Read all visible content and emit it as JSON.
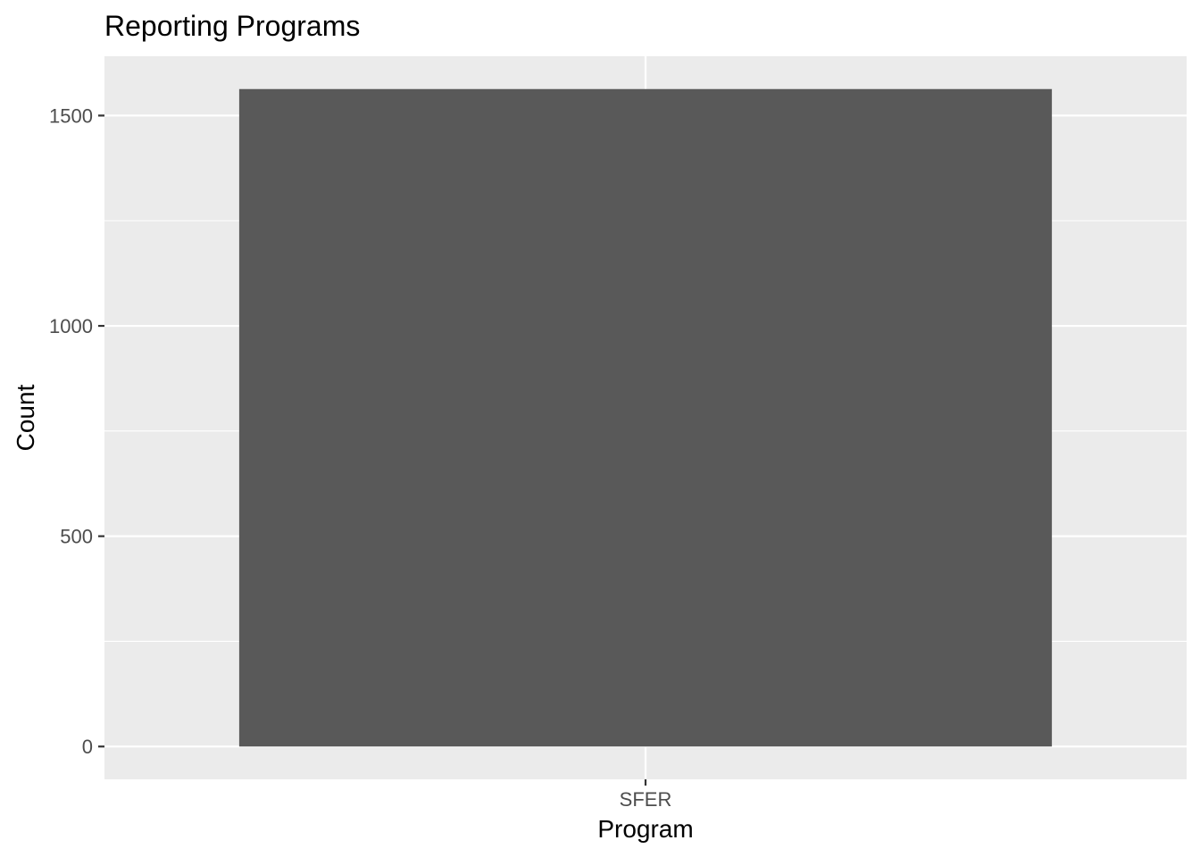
{
  "chart_data": {
    "type": "bar",
    "title": "Reporting Programs",
    "xlabel": "Program",
    "ylabel": "Count",
    "categories": [
      "SFER"
    ],
    "values": [
      1563
    ],
    "ylim": [
      -78,
      1641
    ],
    "y_ticks": [
      0,
      500,
      1000,
      1500
    ],
    "y_minor_ticks": [
      250,
      750,
      1250
    ],
    "grid": true,
    "legend": "none",
    "colors": {
      "bar": "#595959",
      "panel": "#ebebeb",
      "grid": "#ffffff",
      "tick": "#333333",
      "tick_label": "#4d4d4d"
    }
  }
}
